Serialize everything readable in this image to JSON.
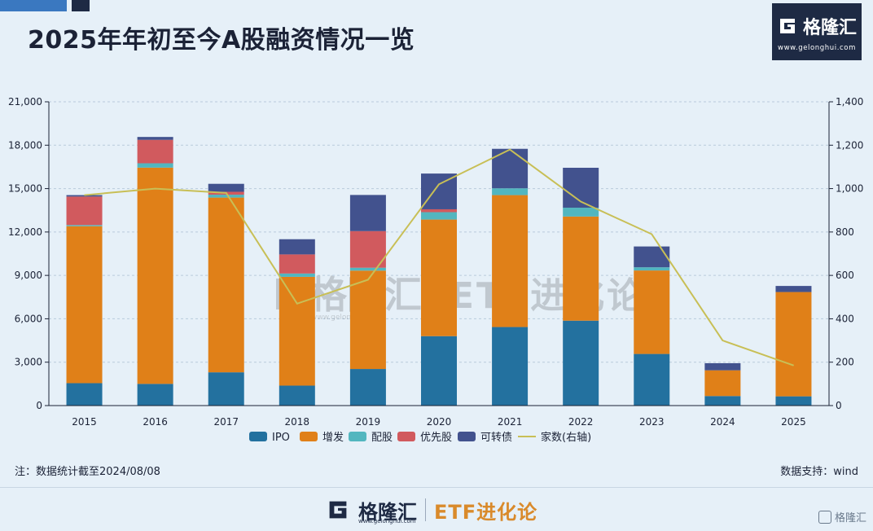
{
  "header": {
    "title": "2025年年初至今A股融资情况一览",
    "brand_name": "格隆汇",
    "brand_url": "www.gelonghui.com"
  },
  "colors": {
    "IPO": "#23719f",
    "增发": "#e08018",
    "配股": "#52b6bf",
    "优先股": "#d15a5e",
    "可转债": "#42528e",
    "家数(右轴)": "#c8bf56"
  },
  "chart_data": {
    "type": "bar",
    "stacked": true,
    "categories": [
      "2015",
      "2016",
      "2017",
      "2018",
      "2019",
      "2020",
      "2021",
      "2022",
      "2023",
      "2024",
      "2025"
    ],
    "series": [
      {
        "name": "IPO",
        "values": [
          1550,
          1500,
          2300,
          1380,
          2530,
          4800,
          5430,
          5870,
          3570,
          660,
          640
        ]
      },
      {
        "name": "增发",
        "values": [
          10850,
          14950,
          12080,
          7520,
          6800,
          8060,
          9120,
          7200,
          5770,
          1780,
          7210
        ]
      },
      {
        "name": "配股",
        "values": [
          80,
          300,
          200,
          230,
          200,
          510,
          470,
          610,
          220,
          0,
          0
        ]
      },
      {
        "name": "优先股",
        "values": [
          1970,
          1620,
          200,
          1320,
          2530,
          200,
          0,
          0,
          0,
          0,
          0
        ]
      },
      {
        "name": "可转债",
        "values": [
          100,
          200,
          550,
          1050,
          2500,
          2470,
          2730,
          2760,
          1440,
          490,
          420
        ]
      }
    ],
    "line_series": {
      "name": "家数(右轴)",
      "axis": "right",
      "values": [
        970,
        1000,
        980,
        470,
        580,
        1020,
        1180,
        940,
        790,
        300,
        185
      ]
    },
    "y_left": {
      "min": 0,
      "max": 21000,
      "ticks": [
        0,
        3000,
        6000,
        9000,
        12000,
        15000,
        18000,
        21000
      ],
      "tick_labels": [
        "0",
        "3,000",
        "6,000",
        "9,000",
        "12,000",
        "15,000",
        "18,000",
        "21,000"
      ]
    },
    "y_right": {
      "min": 0,
      "max": 1400,
      "ticks": [
        0,
        200,
        400,
        600,
        800,
        1000,
        1200,
        1400
      ],
      "tick_labels": [
        "0",
        "200",
        "400",
        "600",
        "800",
        "1,000",
        "1,200",
        "1,400"
      ]
    },
    "legend_position": "bottom",
    "grid": true
  },
  "watermark": {
    "brand": "格隆汇",
    "url": "www.gelonghui.com",
    "slogan": "ETF进化论"
  },
  "footnotes": {
    "note": "注：数据统计截至2024/08/08",
    "source": "数据支持：wind"
  },
  "footer": {
    "brand": "格隆汇",
    "url": "www.gelonghui.com",
    "slogan": "ETF进化论"
  },
  "corner_mark": "格隆汇"
}
